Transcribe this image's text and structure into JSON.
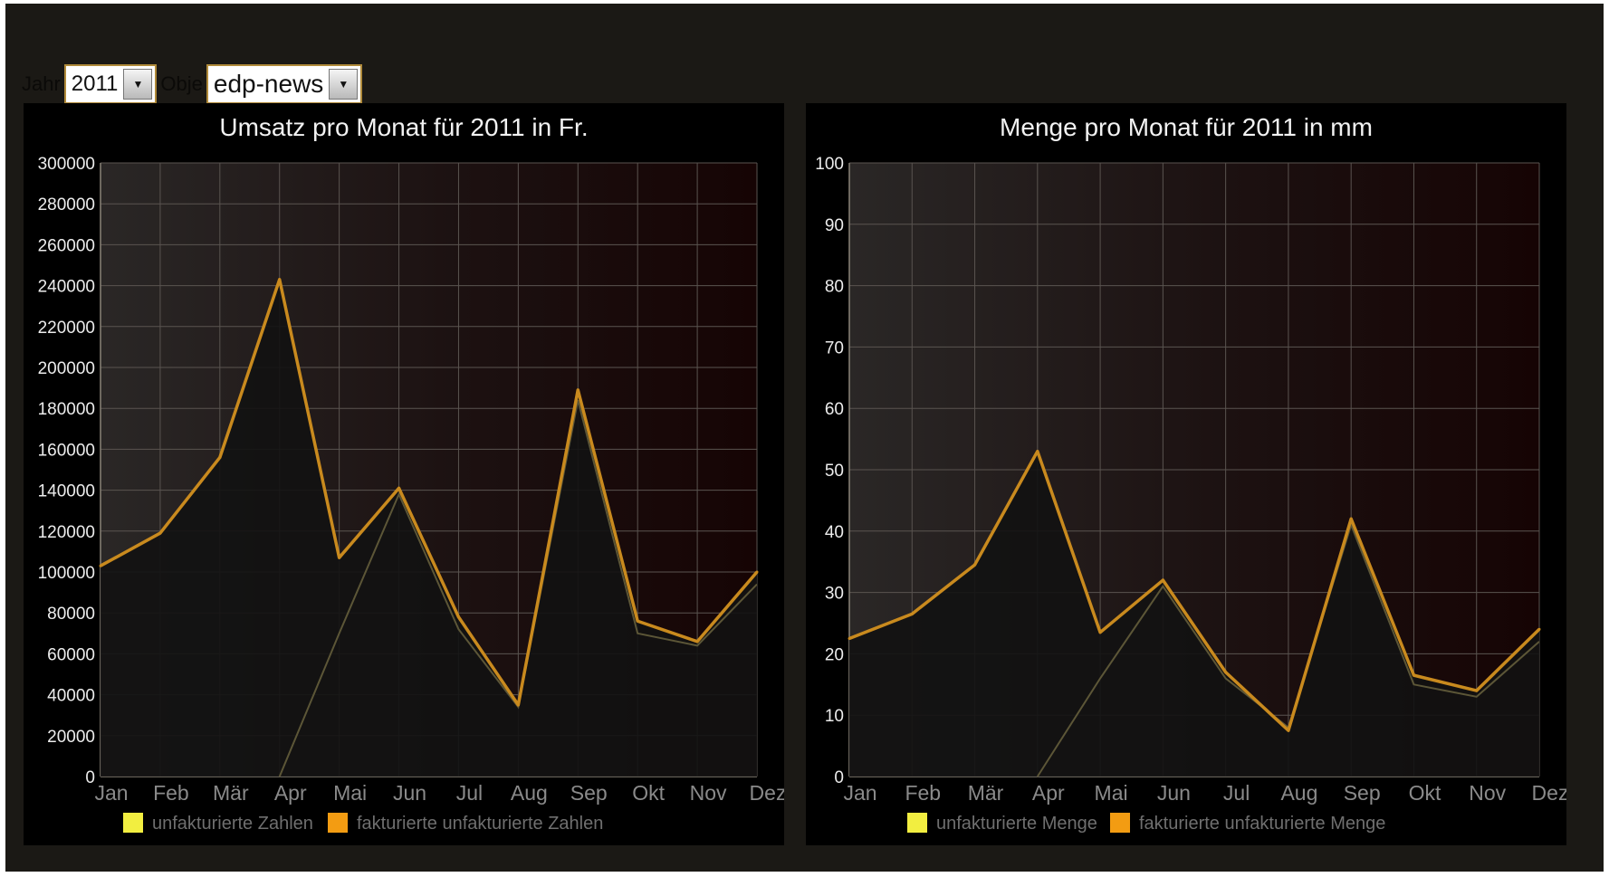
{
  "controls": {
    "year_label": "Jahr",
    "year_value": "2011",
    "account_label": "Obje",
    "account_value": "edp-news"
  },
  "colors": {
    "background": "#1b1915",
    "panel": "#000000",
    "unfakturiert": "#f2ee40",
    "fakturiert": "#f39c12",
    "line_gold": "#c98a1e",
    "line_secondary": "#5c5637",
    "grid": "#5a5450"
  },
  "chart_data": [
    {
      "type": "line",
      "title": "Umsatz pro Monat für 2011 in Fr.",
      "categories": [
        "Jan",
        "Feb",
        "Mär",
        "Apr",
        "Mai",
        "Jun",
        "Jul",
        "Aug",
        "Sep",
        "Okt",
        "Nov",
        "Dez"
      ],
      "ylim": [
        0,
        300000
      ],
      "yticks": [
        0,
        20000,
        40000,
        60000,
        80000,
        100000,
        120000,
        140000,
        160000,
        180000,
        200000,
        220000,
        240000,
        260000,
        280000,
        300000
      ],
      "grid": true,
      "legend_position": "bottom",
      "series": [
        {
          "name": "unfakturierte Zahlen",
          "color": "#f2ee40",
          "values": [
            null,
            null,
            null,
            0,
            70000,
            138000,
            72000,
            34000,
            184000,
            70000,
            64000,
            94000
          ]
        },
        {
          "name": "fakturierte unfakturierte Zahlen",
          "color": "#f39c12",
          "values": [
            103000,
            119000,
            156000,
            243000,
            107000,
            141000,
            78000,
            35000,
            189000,
            76000,
            66000,
            100000
          ]
        }
      ]
    },
    {
      "type": "line",
      "title": "Menge pro Monat für 2011 in mm",
      "categories": [
        "Jan",
        "Feb",
        "Mär",
        "Apr",
        "Mai",
        "Jun",
        "Jul",
        "Aug",
        "Sep",
        "Okt",
        "Nov",
        "Dez"
      ],
      "ylim": [
        0,
        100
      ],
      "yticks": [
        0,
        10,
        20,
        30,
        40,
        50,
        60,
        70,
        80,
        90,
        100
      ],
      "grid": true,
      "legend_position": "bottom",
      "series": [
        {
          "name": "unfakturierte Menge",
          "color": "#f2ee40",
          "values": [
            null,
            null,
            null,
            0,
            16,
            31,
            16,
            8,
            41,
            15,
            13,
            22
          ]
        },
        {
          "name": "fakturierte unfakturierte Menge",
          "color": "#f39c12",
          "values": [
            22.5,
            26.5,
            34.5,
            53,
            23.5,
            32,
            17,
            7.5,
            42,
            16.5,
            14,
            24
          ]
        }
      ]
    }
  ]
}
